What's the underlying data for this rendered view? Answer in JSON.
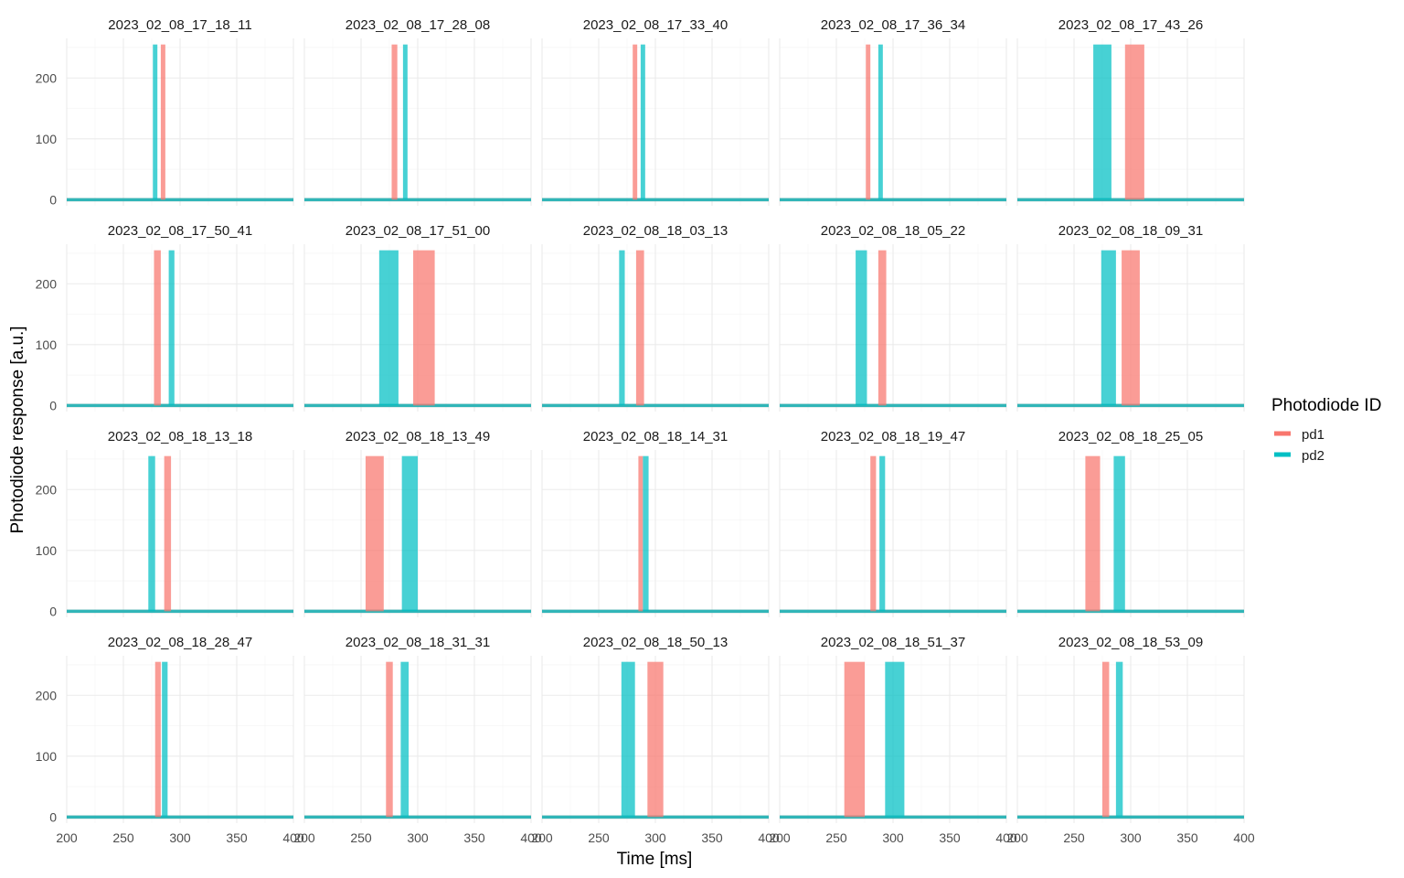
{
  "chart_data": {
    "type": "line",
    "layout": "facet-grid",
    "xlabel": "Time [ms]",
    "ylabel": "Photodiode response [a.u.]",
    "xlim": [
      200,
      400
    ],
    "ylim": [
      -10,
      265
    ],
    "x_ticks": [
      200,
      250,
      300,
      350,
      400
    ],
    "y_ticks": [
      0,
      100,
      200
    ],
    "grid": true,
    "legend": {
      "title": "Photodiode ID",
      "placement": "right",
      "entries": [
        {
          "name": "pd1",
          "color": "#F8766D"
        },
        {
          "name": "pd2",
          "color": "#00BFC4"
        }
      ]
    },
    "panels": [
      {
        "title": "2023_02_08_17_18_11",
        "pd1": [
          [
            283,
            287
          ]
        ],
        "pd2": [
          [
            276,
            280
          ]
        ]
      },
      {
        "title": "2023_02_08_17_28_08",
        "pd1": [
          [
            277,
            282
          ]
        ],
        "pd2": [
          [
            287,
            291
          ]
        ]
      },
      {
        "title": "2023_02_08_17_33_40",
        "pd1": [
          [
            280,
            284
          ]
        ],
        "pd2": [
          [
            287,
            291
          ]
        ]
      },
      {
        "title": "2023_02_08_17_36_34",
        "pd1": [
          [
            276,
            280
          ]
        ],
        "pd2": [
          [
            287,
            291
          ]
        ]
      },
      {
        "title": "2023_02_08_17_43_26",
        "pd1": [
          [
            295,
            312
          ]
        ],
        "pd2": [
          [
            267,
            283
          ]
        ]
      },
      {
        "title": "2023_02_08_17_50_41",
        "pd1": [
          [
            277,
            283
          ]
        ],
        "pd2": [
          [
            290,
            295
          ]
        ]
      },
      {
        "title": "2023_02_08_17_51_00",
        "pd1": [
          [
            296,
            315
          ]
        ],
        "pd2": [
          [
            266,
            283
          ]
        ]
      },
      {
        "title": "2023_02_08_18_03_13",
        "pd1": [
          [
            283,
            290
          ]
        ],
        "pd2": [
          [
            268,
            273
          ]
        ]
      },
      {
        "title": "2023_02_08_18_05_22",
        "pd1": [
          [
            287,
            294
          ]
        ],
        "pd2": [
          [
            267,
            277
          ]
        ]
      },
      {
        "title": "2023_02_08_18_09_31",
        "pd1": [
          [
            292,
            308
          ]
        ],
        "pd2": [
          [
            274,
            287
          ]
        ]
      },
      {
        "title": "2023_02_08_18_13_18",
        "pd1": [
          [
            286,
            292
          ]
        ],
        "pd2": [
          [
            272,
            278
          ]
        ]
      },
      {
        "title": "2023_02_08_18_13_49",
        "pd1": [
          [
            254,
            270
          ]
        ],
        "pd2": [
          [
            286,
            300
          ]
        ]
      },
      {
        "title": "2023_02_08_18_14_31",
        "pd1": [
          [
            285,
            289
          ]
        ],
        "pd2": [
          [
            289,
            294
          ]
        ]
      },
      {
        "title": "2023_02_08_18_19_47",
        "pd1": [
          [
            280,
            285
          ]
        ],
        "pd2": [
          [
            288,
            293
          ]
        ]
      },
      {
        "title": "2023_02_08_18_25_05",
        "pd1": [
          [
            260,
            273
          ]
        ],
        "pd2": [
          [
            285,
            295
          ]
        ]
      },
      {
        "title": "2023_02_08_18_28_47",
        "pd1": [
          [
            278,
            283
          ]
        ],
        "pd2": [
          [
            284,
            289
          ]
        ]
      },
      {
        "title": "2023_02_08_18_31_31",
        "pd1": [
          [
            272,
            278
          ]
        ],
        "pd2": [
          [
            285,
            292
          ]
        ]
      },
      {
        "title": "2023_02_08_18_50_13",
        "pd1": [
          [
            293,
            307
          ]
        ],
        "pd2": [
          [
            270,
            282
          ]
        ]
      },
      {
        "title": "2023_02_08_18_51_37",
        "pd1": [
          [
            257,
            275
          ]
        ],
        "pd2": [
          [
            293,
            310
          ]
        ]
      },
      {
        "title": "2023_02_08_18_53_09",
        "pd1": [
          [
            275,
            281
          ]
        ],
        "pd2": [
          [
            287,
            293
          ]
        ]
      }
    ]
  }
}
